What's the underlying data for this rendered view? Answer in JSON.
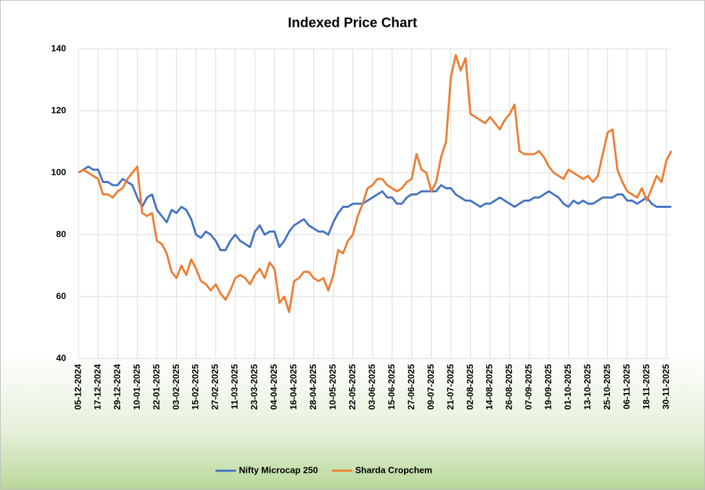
{
  "chart_data": {
    "type": "line",
    "title": "Indexed Price Chart",
    "categories": [
      "05-12-2024",
      null,
      null,
      null,
      "17-12-2024",
      null,
      null,
      null,
      "29-12-2024",
      null,
      null,
      null,
      "10-01-2025",
      null,
      null,
      null,
      "22-01-2025",
      null,
      null,
      null,
      "03-02-2025",
      null,
      null,
      null,
      "15-02-2025",
      null,
      null,
      null,
      "27-02-2025",
      null,
      null,
      null,
      "11-03-2025",
      null,
      null,
      null,
      "23-03-2025",
      null,
      null,
      null,
      "04-04-2025",
      null,
      null,
      null,
      "16-04-2025",
      null,
      null,
      null,
      "28-04-2025",
      null,
      null,
      null,
      "10-05-2025",
      null,
      null,
      null,
      "22-05-2025",
      null,
      null,
      null,
      "03-06-2025",
      null,
      null,
      null,
      "15-06-2025",
      null,
      null,
      null,
      "27-06-2025",
      null,
      null,
      null,
      "09-07-2025",
      null,
      null,
      null,
      "21-07-2025",
      null,
      null,
      null,
      "02-08-2025",
      null,
      null,
      null,
      "14-08-2025",
      null,
      null,
      null,
      "26-08-2025",
      null,
      null,
      null,
      "07-09-2025",
      null,
      null,
      null,
      "19-09-2025",
      null,
      null,
      null,
      "01-10-2025",
      null,
      null,
      null,
      "13-10-2025",
      null,
      null,
      null,
      "25-10-2025",
      null,
      null,
      null,
      "06-11-2025",
      null,
      null,
      null,
      "18-11-2025",
      null,
      null,
      null,
      "30-11-2025",
      null
    ],
    "series": [
      {
        "name": "Nifty Microcap 250",
        "color": "#4472c4",
        "values": [
          100,
          101,
          102,
          101,
          101,
          97,
          97,
          96,
          96,
          98,
          97,
          96,
          92,
          89,
          92,
          93,
          88,
          86,
          84,
          88,
          87,
          89,
          88,
          85,
          80,
          79,
          81,
          80,
          78,
          75,
          75,
          78,
          80,
          78,
          77,
          76,
          81,
          83,
          80,
          81,
          81,
          76,
          78,
          81,
          83,
          84,
          85,
          83,
          82,
          81,
          81,
          80,
          84,
          87,
          89,
          89,
          90,
          90,
          90,
          91,
          92,
          93,
          94,
          92,
          92,
          90,
          90,
          92,
          93,
          93,
          94,
          94,
          94,
          94,
          96,
          95,
          95,
          93,
          92,
          91,
          91,
          90,
          89,
          90,
          90,
          91,
          92,
          91,
          90,
          89,
          90,
          91,
          91,
          92,
          92,
          93,
          94,
          93,
          92,
          90,
          89,
          91,
          90,
          91,
          90,
          90,
          91,
          92,
          92,
          92,
          93,
          93,
          91,
          91,
          90,
          91,
          92,
          90,
          89,
          89,
          89,
          89
        ]
      },
      {
        "name": "Sharda Cropchem",
        "color": "#ed7d31",
        "values": [
          100,
          101,
          100,
          99,
          98,
          93,
          93,
          92,
          94,
          95,
          98,
          100,
          102,
          87,
          86,
          87,
          78,
          77,
          74,
          68,
          66,
          70,
          67,
          72,
          69,
          65,
          64,
          62,
          64,
          61,
          59,
          62,
          66,
          67,
          66,
          64,
          67,
          69,
          66,
          71,
          69,
          58,
          60,
          55,
          65,
          66,
          68,
          68,
          66,
          65,
          66,
          62,
          67,
          75,
          74,
          78,
          80,
          86,
          90,
          95,
          96,
          98,
          98,
          96,
          95,
          94,
          95,
          97,
          98,
          106,
          101,
          100,
          94,
          97,
          105,
          110,
          131,
          138,
          133,
          137,
          119,
          118,
          117,
          116,
          118,
          116,
          114,
          117,
          119,
          122,
          107,
          106,
          106,
          106,
          107,
          105,
          102,
          100,
          99,
          98,
          101,
          100,
          99,
          98,
          99,
          97,
          99,
          106,
          113,
          114,
          101,
          97,
          94,
          93,
          92,
          95,
          91,
          95,
          99,
          97,
          104,
          107
        ]
      }
    ],
    "ylim": [
      40,
      140
    ],
    "yticks": [
      40,
      60,
      80,
      100,
      120,
      140
    ],
    "grid": true,
    "legend": "bottom"
  }
}
